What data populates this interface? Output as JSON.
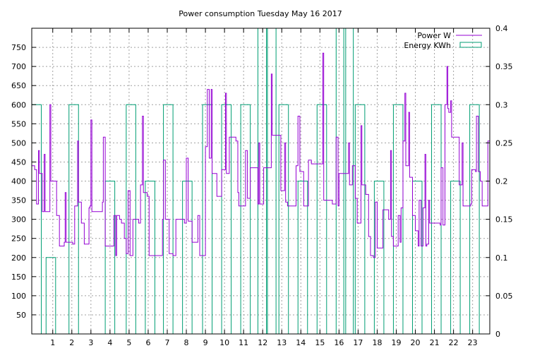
{
  "chart_data": {
    "type": "line",
    "title": "Power consumption Tuesday May 16 2017",
    "xlabel": "",
    "ylabel": "",
    "y2label": "",
    "xlim": [
      -0.1,
      23.9
    ],
    "ylim": [
      0,
      800
    ],
    "y2lim": [
      0,
      0.4
    ],
    "x_ticks": [
      1,
      2,
      3,
      4,
      5,
      6,
      7,
      8,
      9,
      10,
      11,
      12,
      13,
      14,
      15,
      16,
      17,
      18,
      19,
      20,
      21,
      22,
      23
    ],
    "y_ticks": [
      50,
      100,
      150,
      200,
      250,
      300,
      350,
      400,
      450,
      500,
      550,
      600,
      650,
      700,
      750
    ],
    "y2_ticks": [
      0,
      0.05,
      0.1,
      0.15,
      0.2,
      0.25,
      0.3,
      0.35,
      0.4
    ],
    "grid": true,
    "legend_position": "top-right",
    "colors": {
      "power": "#9400d3",
      "energy": "#009e73",
      "grid": "#a0a0a0",
      "axes": "#000000"
    },
    "series": [
      {
        "name": "Power W",
        "axis": "y",
        "style": "steps",
        "points": [
          [
            -0.1,
            440
          ],
          [
            0.05,
            430
          ],
          [
            0.15,
            340
          ],
          [
            0.25,
            480
          ],
          [
            0.3,
            420
          ],
          [
            0.45,
            320
          ],
          [
            0.55,
            470
          ],
          [
            0.6,
            320
          ],
          [
            0.85,
            600
          ],
          [
            0.9,
            400
          ],
          [
            1.2,
            310
          ],
          [
            1.35,
            230
          ],
          [
            1.6,
            240
          ],
          [
            1.65,
            370
          ],
          [
            1.7,
            240
          ],
          [
            2.05,
            235
          ],
          [
            2.15,
            335
          ],
          [
            2.3,
            505
          ],
          [
            2.35,
            345
          ],
          [
            2.5,
            290
          ],
          [
            2.65,
            235
          ],
          [
            2.9,
            330
          ],
          [
            2.95,
            335
          ],
          [
            3.0,
            560
          ],
          [
            3.05,
            320
          ],
          [
            3.6,
            345
          ],
          [
            3.65,
            515
          ],
          [
            3.75,
            230
          ],
          [
            4.2,
            310
          ],
          [
            4.3,
            205
          ],
          [
            4.35,
            310
          ],
          [
            4.5,
            300
          ],
          [
            4.6,
            290
          ],
          [
            4.75,
            250
          ],
          [
            4.85,
            210
          ],
          [
            4.95,
            375
          ],
          [
            5.05,
            205
          ],
          [
            5.2,
            300
          ],
          [
            5.5,
            290
          ],
          [
            5.6,
            390
          ],
          [
            5.7,
            570
          ],
          [
            5.75,
            370
          ],
          [
            5.95,
            360
          ],
          [
            6.05,
            205
          ],
          [
            6.3,
            205
          ],
          [
            6.75,
            300
          ],
          [
            6.8,
            455
          ],
          [
            6.9,
            300
          ],
          [
            7.1,
            210
          ],
          [
            7.3,
            205
          ],
          [
            7.45,
            300
          ],
          [
            7.9,
            290
          ],
          [
            8.0,
            460
          ],
          [
            8.1,
            295
          ],
          [
            8.3,
            240
          ],
          [
            8.6,
            310
          ],
          [
            8.7,
            205
          ],
          [
            9.0,
            490
          ],
          [
            9.1,
            640
          ],
          [
            9.2,
            460
          ],
          [
            9.3,
            640
          ],
          [
            9.35,
            420
          ],
          [
            9.6,
            360
          ],
          [
            9.85,
            430
          ],
          [
            10.05,
            630
          ],
          [
            10.1,
            420
          ],
          [
            10.25,
            515
          ],
          [
            10.6,
            505
          ],
          [
            10.7,
            370
          ],
          [
            10.75,
            335
          ],
          [
            11.1,
            480
          ],
          [
            11.2,
            355
          ],
          [
            11.35,
            435
          ],
          [
            11.75,
            340
          ],
          [
            11.8,
            500
          ],
          [
            11.85,
            340
          ],
          [
            12.05,
            435
          ],
          [
            12.45,
            680
          ],
          [
            12.5,
            520
          ],
          [
            12.95,
            375
          ],
          [
            13.15,
            500
          ],
          [
            13.2,
            345
          ],
          [
            13.3,
            335
          ],
          [
            13.75,
            440
          ],
          [
            13.85,
            570
          ],
          [
            13.95,
            425
          ],
          [
            14.15,
            335
          ],
          [
            14.4,
            455
          ],
          [
            14.55,
            445
          ],
          [
            15.15,
            735
          ],
          [
            15.2,
            350
          ],
          [
            15.65,
            340
          ],
          [
            15.85,
            515
          ],
          [
            15.95,
            335
          ],
          [
            16.0,
            420
          ],
          [
            16.5,
            500
          ],
          [
            16.55,
            390
          ],
          [
            16.7,
            440
          ],
          [
            16.85,
            355
          ],
          [
            16.95,
            290
          ],
          [
            17.05,
            290
          ],
          [
            17.15,
            545
          ],
          [
            17.2,
            390
          ],
          [
            17.4,
            365
          ],
          [
            17.55,
            255
          ],
          [
            17.65,
            205
          ],
          [
            17.8,
            200
          ],
          [
            17.9,
            345
          ],
          [
            18.0,
            225
          ],
          [
            18.3,
            325
          ],
          [
            18.6,
            300
          ],
          [
            18.7,
            480
          ],
          [
            18.75,
            255
          ],
          [
            18.85,
            230
          ],
          [
            19.1,
            310
          ],
          [
            19.2,
            240
          ],
          [
            19.25,
            330
          ],
          [
            19.35,
            505
          ],
          [
            19.45,
            630
          ],
          [
            19.5,
            440
          ],
          [
            19.65,
            580
          ],
          [
            19.7,
            410
          ],
          [
            19.85,
            310
          ],
          [
            20.0,
            270
          ],
          [
            20.15,
            230
          ],
          [
            20.2,
            350
          ],
          [
            20.3,
            230
          ],
          [
            20.4,
            330
          ],
          [
            20.5,
            470
          ],
          [
            20.55,
            230
          ],
          [
            20.6,
            235
          ],
          [
            20.7,
            350
          ],
          [
            20.75,
            290
          ],
          [
            20.9,
            290
          ],
          [
            21.3,
            285
          ],
          [
            21.35,
            435
          ],
          [
            21.45,
            285
          ],
          [
            21.55,
            600
          ],
          [
            21.65,
            700
          ],
          [
            21.7,
            590
          ],
          [
            21.75,
            580
          ],
          [
            21.85,
            610
          ],
          [
            21.9,
            515
          ],
          [
            22.3,
            390
          ],
          [
            22.45,
            500
          ],
          [
            22.5,
            335
          ],
          [
            22.9,
            340
          ],
          [
            22.95,
            430
          ],
          [
            23.15,
            425
          ],
          [
            23.2,
            570
          ],
          [
            23.3,
            425
          ],
          [
            23.4,
            400
          ],
          [
            23.5,
            335
          ],
          [
            23.8,
            505
          ],
          [
            23.9,
            505
          ]
        ]
      },
      {
        "name": "Energy KWh",
        "axis": "y2",
        "style": "impulse-boxes",
        "boxes": [
          [
            -0.1,
            0.3
          ],
          [
            0.65,
            0.1
          ],
          [
            1.85,
            0.3
          ],
          [
            3.75,
            0.2
          ],
          [
            4.85,
            0.3
          ],
          [
            5.85,
            0.2
          ],
          [
            6.8,
            0.3
          ],
          [
            7.8,
            0.2
          ],
          [
            8.85,
            0.3
          ],
          [
            9.85,
            0.3
          ],
          [
            10.85,
            0.3
          ],
          [
            11.75,
            0.4
          ],
          [
            12.2,
            0.4
          ],
          [
            12.85,
            0.3
          ],
          [
            13.85,
            0.2
          ],
          [
            14.85,
            0.3
          ],
          [
            15.85,
            0.4
          ],
          [
            16.25,
            0.4
          ],
          [
            16.85,
            0.3
          ],
          [
            17.85,
            0.2
          ],
          [
            18.85,
            0.3
          ],
          [
            19.85,
            0.2
          ],
          [
            20.85,
            0.3
          ],
          [
            21.85,
            0.2
          ],
          [
            22.85,
            0.3
          ]
        ],
        "box_width": 0.5
      }
    ]
  }
}
